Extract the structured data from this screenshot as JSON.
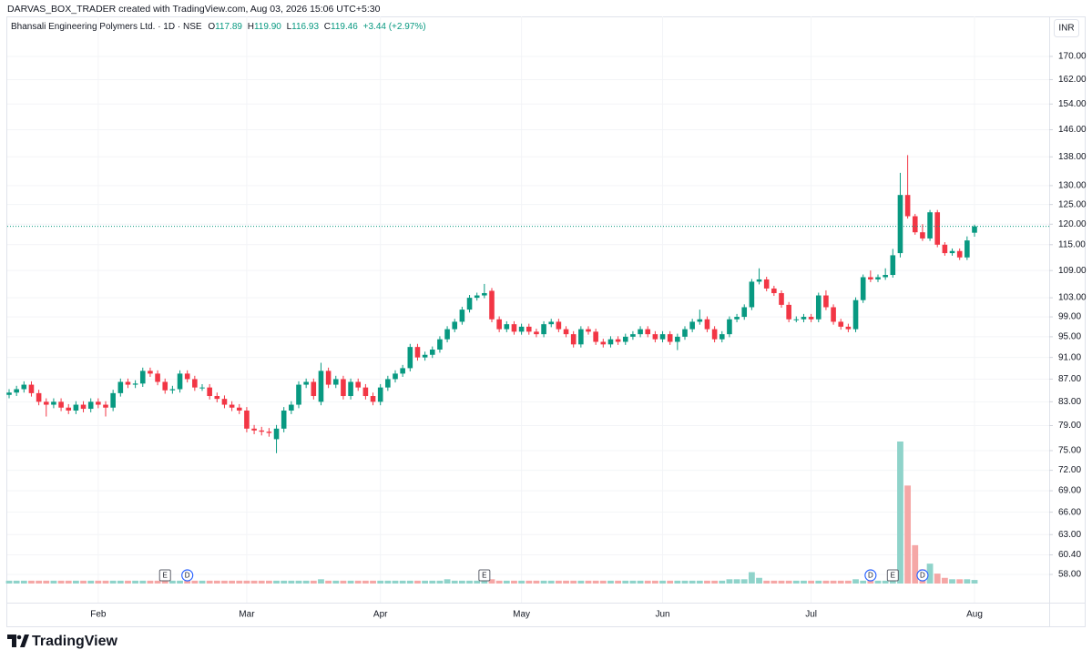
{
  "header": "DARVAS_BOX_TRADER created with TradingView.com, Aug 03, 2026 15:06 UTC+5:30",
  "footer": "TradingView",
  "chart_data": {
    "type": "candlestick",
    "title": "Bhansali Engineering Polymers Ltd. · 1D · NSE",
    "legend_keys": [
      "O",
      "H",
      "L",
      "C"
    ],
    "legend_values": [
      "117.89",
      "119.90",
      "116.93",
      "119.46"
    ],
    "change_label": "+3.44 (+2.97%)",
    "currency": "INR",
    "up_color": "#089981",
    "down_color": "#f23645",
    "volume_up_color": "#8fd3ca",
    "volume_down_color": "#f5a7a6",
    "log_scale": true,
    "grid": true,
    "ylim": [
      54.7,
      176.2
    ],
    "yticks": [
      {
        "value": 170,
        "label": "170.00"
      },
      {
        "value": 162,
        "label": "162.00"
      },
      {
        "value": 154,
        "label": "154.00"
      },
      {
        "value": 146,
        "label": "146.00"
      },
      {
        "value": 138,
        "label": "138.00"
      },
      {
        "value": 130,
        "label": "130.00"
      },
      {
        "value": 125,
        "label": "125.00"
      },
      {
        "value": 120,
        "label": "120.00"
      },
      {
        "value": 115,
        "label": "115.00"
      },
      {
        "value": 109,
        "label": "109.00"
      },
      {
        "value": 103,
        "label": "103.00"
      },
      {
        "value": 99,
        "label": "99.00"
      },
      {
        "value": 95,
        "label": "95.00"
      },
      {
        "value": 91,
        "label": "91.00"
      },
      {
        "value": 87,
        "label": "87.00"
      },
      {
        "value": 83,
        "label": "83.00"
      },
      {
        "value": 79,
        "label": "79.00"
      },
      {
        "value": 75,
        "label": "75.00"
      },
      {
        "value": 72,
        "label": "72.00"
      },
      {
        "value": 69,
        "label": "69.00"
      },
      {
        "value": 66,
        "label": "66.00"
      },
      {
        "value": 63,
        "label": "63.00"
      },
      {
        "value": 60.4,
        "label": "60.40"
      },
      {
        "value": 58,
        "label": "58.00"
      }
    ],
    "categories": [
      null,
      null,
      null,
      null,
      null,
      null,
      null,
      null,
      null,
      null,
      null,
      null,
      "Feb",
      null,
      null,
      null,
      null,
      null,
      null,
      null,
      null,
      null,
      null,
      null,
      null,
      null,
      null,
      null,
      null,
      null,
      null,
      null,
      "Mar",
      null,
      null,
      null,
      null,
      null,
      null,
      null,
      null,
      null,
      null,
      null,
      null,
      null,
      null,
      null,
      null,
      null,
      "Apr",
      null,
      null,
      null,
      null,
      null,
      null,
      null,
      null,
      null,
      null,
      null,
      null,
      null,
      null,
      null,
      null,
      null,
      null,
      "May",
      null,
      null,
      null,
      null,
      null,
      null,
      null,
      null,
      null,
      null,
      null,
      null,
      null,
      null,
      null,
      null,
      null,
      null,
      "Jun",
      null,
      null,
      null,
      null,
      null,
      null,
      null,
      null,
      null,
      null,
      null,
      null,
      null,
      null,
      null,
      null,
      null,
      null,
      null,
      "Jul",
      null,
      null,
      null,
      null,
      null,
      null,
      null,
      null,
      null,
      null,
      null,
      null,
      null,
      null,
      null,
      null,
      null,
      null,
      null,
      null,
      null,
      "Aug"
    ],
    "events": [
      null,
      null,
      null,
      null,
      null,
      null,
      null,
      null,
      null,
      null,
      null,
      null,
      null,
      null,
      null,
      null,
      null,
      null,
      null,
      null,
      null,
      "E",
      null,
      null,
      "D",
      null,
      null,
      null,
      null,
      null,
      null,
      null,
      null,
      null,
      null,
      null,
      null,
      null,
      null,
      null,
      null,
      null,
      null,
      null,
      null,
      null,
      null,
      null,
      null,
      null,
      null,
      null,
      null,
      null,
      null,
      null,
      null,
      null,
      null,
      null,
      null,
      null,
      null,
      null,
      "E",
      null,
      null,
      null,
      null,
      null,
      null,
      null,
      null,
      null,
      null,
      null,
      null,
      null,
      null,
      null,
      null,
      null,
      null,
      null,
      null,
      null,
      null,
      null,
      null,
      null,
      null,
      null,
      null,
      null,
      null,
      null,
      null,
      null,
      null,
      null,
      null,
      null,
      null,
      null,
      null,
      null,
      null,
      null,
      null,
      null,
      null,
      null,
      null,
      null,
      null,
      null,
      "D",
      null,
      null,
      "E",
      null,
      null,
      null,
      "D",
      null,
      null,
      null,
      null,
      null,
      null,
      null
    ],
    "open": [
      84.2,
      84.6,
      85.2,
      86.0,
      84.5,
      83.0,
      82.5,
      83.0,
      82.0,
      81.5,
      82.5,
      81.8,
      83.0,
      82.5,
      82.0,
      84.5,
      86.5,
      86.0,
      86.2,
      88.5,
      88.0,
      86.5,
      85.0,
      85.2,
      88.0,
      87.0,
      85.5,
      85.5,
      84.0,
      83.5,
      82.5,
      82.0,
      81.5,
      78.5,
      78.2,
      78.0,
      76.8,
      78.5,
      81.5,
      82.5,
      86.0,
      86.5,
      83.0,
      88.5,
      86.0,
      87.0,
      84.0,
      86.5,
      85.5,
      84.0,
      83.0,
      85.5,
      87.0,
      88.0,
      89.0,
      93.0,
      91.0,
      91.5,
      92.5,
      94.5,
      96.5,
      98.0,
      100.5,
      103.0,
      103.5,
      104.5,
      98.5,
      96.5,
      97.5,
      96.0,
      97.0,
      96.0,
      95.5,
      97.5,
      98.0,
      96.5,
      95.5,
      93.5,
      96.5,
      96.0,
      94.0,
      93.5,
      94.5,
      94.0,
      95.0,
      95.5,
      96.5,
      95.5,
      94.5,
      95.5,
      94.0,
      95.0,
      96.5,
      98.0,
      98.5,
      96.5,
      94.5,
      95.5,
      98.5,
      99.0,
      101.0,
      106.5,
      107.0,
      105.0,
      104.0,
      101.5,
      98.5,
      98.5,
      99.0,
      98.5,
      103.5,
      101.0,
      98.0,
      97.0,
      96.5,
      102.5,
      107.5,
      107.0,
      107.5,
      108.0,
      113.0,
      127.5,
      122.0,
      118.0,
      116.5,
      123.0,
      115.0,
      113.0,
      113.5,
      112.0,
      117.89
    ],
    "high": [
      85.2,
      85.8,
      86.6,
      86.6,
      85.1,
      83.6,
      83.6,
      83.6,
      82.6,
      83.1,
      83.1,
      83.6,
      83.6,
      83.1,
      85.1,
      87.1,
      87.1,
      86.8,
      89.1,
      89.1,
      88.6,
      87.1,
      85.8,
      88.6,
      88.6,
      87.6,
      86.1,
      86.1,
      84.6,
      84.1,
      83.1,
      82.6,
      82.1,
      79.1,
      78.8,
      78.6,
      79.1,
      82.1,
      83.1,
      86.6,
      87.1,
      87.1,
      90.0,
      89.1,
      87.6,
      87.6,
      87.1,
      87.1,
      86.1,
      84.6,
      86.1,
      87.6,
      88.6,
      89.6,
      93.6,
      93.6,
      92.1,
      93.1,
      95.1,
      97.1,
      98.6,
      101.1,
      103.6,
      104.1,
      106.0,
      105.1,
      99.1,
      98.1,
      98.1,
      97.6,
      97.6,
      96.6,
      98.1,
      98.6,
      98.6,
      97.1,
      96.1,
      97.1,
      97.1,
      96.6,
      94.6,
      95.1,
      95.1,
      95.6,
      96.1,
      97.1,
      97.1,
      96.1,
      96.1,
      96.1,
      95.6,
      97.1,
      98.6,
      100.5,
      99.1,
      97.1,
      96.1,
      99.1,
      99.6,
      101.6,
      107.1,
      109.5,
      107.6,
      105.6,
      104.6,
      102.1,
      99.1,
      99.6,
      99.6,
      104.1,
      104.6,
      101.6,
      98.6,
      97.6,
      103.1,
      108.1,
      109.0,
      108.1,
      109.5,
      114.0,
      133.5,
      138.5,
      122.6,
      120.0,
      123.6,
      123.6,
      115.6,
      114.1,
      114.1,
      117.0,
      119.9
    ],
    "low": [
      83.6,
      84.0,
      84.6,
      83.9,
      82.4,
      80.5,
      81.9,
      81.4,
      80.9,
      80.9,
      81.2,
      81.2,
      81.9,
      80.5,
      81.4,
      83.9,
      85.4,
      85.4,
      85.6,
      87.4,
      85.9,
      84.4,
      84.4,
      84.6,
      86.4,
      84.9,
      84.9,
      83.4,
      82.9,
      81.9,
      81.4,
      80.9,
      77.9,
      77.6,
      77.4,
      77.2,
      74.6,
      77.9,
      80.9,
      81.9,
      85.4,
      83.4,
      82.4,
      85.4,
      85.4,
      83.4,
      83.4,
      84.9,
      83.4,
      82.4,
      82.4,
      84.9,
      86.4,
      87.4,
      88.4,
      90.4,
      90.4,
      90.9,
      91.9,
      93.9,
      95.9,
      97.4,
      99.9,
      102.4,
      102.9,
      97.9,
      95.9,
      95.9,
      95.4,
      95.4,
      95.4,
      94.9,
      94.9,
      96.9,
      95.9,
      94.9,
      92.9,
      92.9,
      95.4,
      93.4,
      92.9,
      92.9,
      93.4,
      93.4,
      94.4,
      94.9,
      94.9,
      93.9,
      93.9,
      93.4,
      92.4,
      94.4,
      95.9,
      97.4,
      95.9,
      93.9,
      93.9,
      94.9,
      97.9,
      98.4,
      100.4,
      105.9,
      104.4,
      103.4,
      100.9,
      97.9,
      97.9,
      97.9,
      97.9,
      97.9,
      100.4,
      97.4,
      96.4,
      95.9,
      95.9,
      101.9,
      106.4,
      106.4,
      106.9,
      107.4,
      112.0,
      121.4,
      117.4,
      115.9,
      115.9,
      114.4,
      112.4,
      112.4,
      111.4,
      111.4,
      116.93
    ],
    "close": [
      84.6,
      85.2,
      86.0,
      84.5,
      83.0,
      82.5,
      83.0,
      82.0,
      81.5,
      82.5,
      81.8,
      83.0,
      82.5,
      82.0,
      84.5,
      86.5,
      86.0,
      86.2,
      88.5,
      88.0,
      86.5,
      85.0,
      85.2,
      88.0,
      87.0,
      85.5,
      85.5,
      84.0,
      83.5,
      82.5,
      82.0,
      81.5,
      78.5,
      78.2,
      78.0,
      77.8,
      78.5,
      81.5,
      82.5,
      86.0,
      86.5,
      84.0,
      88.5,
      86.0,
      87.0,
      84.0,
      86.5,
      85.5,
      84.0,
      83.0,
      85.5,
      87.0,
      88.0,
      89.0,
      93.0,
      91.0,
      91.5,
      92.5,
      94.5,
      96.5,
      98.0,
      100.5,
      103.0,
      103.5,
      104.0,
      98.5,
      96.5,
      97.5,
      96.0,
      97.0,
      96.0,
      95.5,
      97.5,
      98.0,
      96.5,
      95.5,
      93.5,
      96.5,
      96.0,
      94.0,
      93.5,
      94.5,
      94.0,
      95.0,
      95.5,
      96.5,
      95.5,
      94.5,
      95.5,
      94.0,
      95.0,
      96.5,
      98.0,
      98.5,
      96.5,
      94.5,
      95.5,
      98.5,
      99.0,
      101.0,
      106.5,
      107.0,
      105.0,
      104.0,
      101.5,
      98.5,
      98.5,
      99.0,
      98.5,
      103.5,
      101.0,
      98.0,
      97.0,
      96.5,
      102.5,
      107.5,
      107.0,
      107.5,
      108.0,
      112.5,
      127.5,
      122.0,
      118.0,
      116.5,
      123.0,
      115.0,
      113.0,
      113.5,
      112.0,
      116.02,
      119.46
    ],
    "volume": [
      2,
      2,
      2,
      2,
      2,
      2,
      2,
      2,
      2,
      2,
      2,
      2,
      2,
      2,
      2,
      2,
      2,
      2,
      2,
      2,
      2,
      2,
      2,
      2,
      2,
      2,
      2,
      2,
      2,
      2,
      2,
      2,
      2,
      2,
      2,
      2,
      2,
      2,
      2,
      2,
      2,
      2,
      3,
      2,
      2,
      2,
      2,
      2,
      2,
      2,
      2,
      2,
      2,
      2,
      2,
      2,
      2,
      2,
      2,
      3,
      2,
      2,
      2,
      2,
      5,
      3,
      2,
      2,
      2,
      2,
      2,
      2,
      2,
      2,
      2,
      2,
      2,
      2,
      2,
      2,
      2,
      2,
      2,
      2,
      2,
      2,
      2,
      2,
      2,
      2,
      2,
      2,
      2,
      2,
      2,
      2,
      2,
      3,
      3,
      3,
      8,
      4,
      2,
      2,
      2,
      2,
      2,
      2,
      2,
      2,
      2,
      2,
      2,
      2,
      3,
      2,
      2,
      2,
      2,
      4,
      100,
      69,
      27,
      10,
      14,
      7,
      4,
      3,
      3,
      3,
      2.5
    ]
  }
}
